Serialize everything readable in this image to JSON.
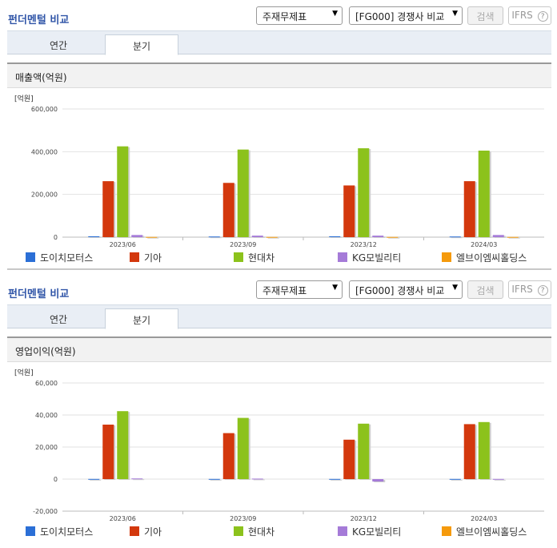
{
  "colors": {
    "도이치모터스": "#2b6fd6",
    "기아": "#d3380d",
    "현대차": "#8cc21c",
    "KG모빌리티": "#a57bd8",
    "엘브이엠씨홀딩스": "#f59a0c"
  },
  "panels": [
    {
      "title": "펀더멘털 비교",
      "select_statement": "주재무제표",
      "select_group": "[FG000] 경쟁사 비교",
      "search_label": "검색",
      "ifrs_label": "IFRS",
      "help_icon": "?",
      "tabs": [
        "연간",
        "분기"
      ],
      "active_tab": "분기",
      "chart_title": "매출액(억원)"
    },
    {
      "title": "펀더멘털 비교",
      "select_statement": "주재무제표",
      "select_group": "[FG000] 경쟁사 비교",
      "search_label": "검색",
      "ifrs_label": "IFRS",
      "help_icon": "?",
      "tabs": [
        "연간",
        "분기"
      ],
      "active_tab": "분기",
      "chart_title": "영업이익(억원)"
    }
  ],
  "chart_data": [
    {
      "type": "bar",
      "title": "매출액(억원)",
      "unit_label": "[억원]",
      "categories": [
        "2023/06",
        "2023/09",
        "2023/12",
        "2024/03"
      ],
      "ylim": [
        0,
        600000
      ],
      "yticks": [
        0,
        200000,
        400000,
        600000
      ],
      "ytick_labels": [
        "0",
        "200,000",
        "400,000",
        "600,000"
      ],
      "grid": true,
      "legend_position": "bottom",
      "series": [
        {
          "name": "도이치모터스",
          "values": [
            4000,
            3000,
            4000,
            3000
          ]
        },
        {
          "name": "기아",
          "values": [
            262000,
            254000,
            242000,
            262000
          ]
        },
        {
          "name": "현대차",
          "values": [
            425000,
            410000,
            416000,
            405000
          ]
        },
        {
          "name": "KG모빌리티",
          "values": [
            10000,
            7000,
            7000,
            10000
          ]
        },
        {
          "name": "엘브이엠씨홀딩스",
          "values": [
            1000,
            1000,
            1000,
            1000
          ]
        }
      ]
    },
    {
      "type": "bar",
      "title": "영업이익(억원)",
      "unit_label": "[억원]",
      "categories": [
        "2023/06",
        "2023/09",
        "2023/12",
        "2024/03"
      ],
      "ylim": [
        -20000,
        60000
      ],
      "yticks": [
        -20000,
        0,
        20000,
        40000,
        60000
      ],
      "ytick_labels": [
        "-20,000",
        "0",
        "20,000",
        "40,000",
        "60,000"
      ],
      "grid": true,
      "legend_position": "bottom",
      "series": [
        {
          "name": "도이치모터스",
          "values": [
            100,
            100,
            100,
            100
          ]
        },
        {
          "name": "기아",
          "values": [
            34000,
            28700,
            24600,
            34300
          ]
        },
        {
          "name": "현대차",
          "values": [
            42400,
            38200,
            34600,
            35600
          ]
        },
        {
          "name": "KG모빌리티",
          "values": [
            400,
            300,
            -1500,
            100
          ]
        },
        {
          "name": "엘브이엠씨홀딩스",
          "values": [
            0,
            0,
            0,
            0
          ]
        }
      ]
    }
  ]
}
